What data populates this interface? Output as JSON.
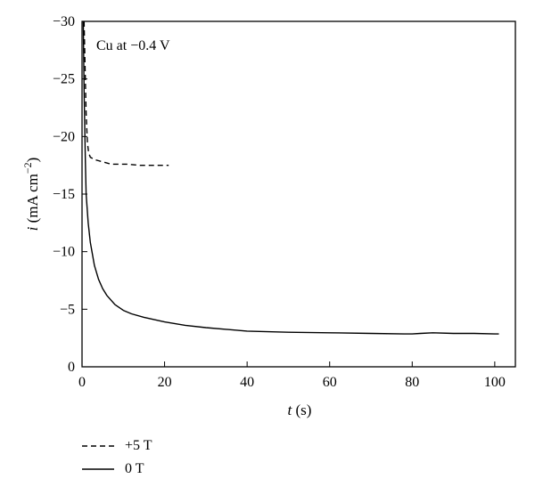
{
  "chart_data": {
    "type": "line",
    "annotation": "Cu at −0.4 V",
    "xlabel_var": "t",
    "xlabel_unit": " (s)",
    "ylabel_var": "i",
    "ylabel_unit": " (mA cm",
    "ylabel_sup": "−2",
    "ylabel_close": ")",
    "xlim": [
      0,
      105
    ],
    "ylim": [
      0,
      -30
    ],
    "y_inverted": true,
    "xticks": [
      0,
      20,
      40,
      60,
      80,
      100
    ],
    "yticks": [
      0,
      -5,
      -10,
      -15,
      -20,
      -25,
      -30
    ],
    "xtick_labels": [
      "0",
      "20",
      "40",
      "60",
      "80",
      "100"
    ],
    "ytick_labels": [
      "0",
      "−5",
      "−10",
      "−15",
      "−20",
      "−25",
      "−30"
    ],
    "grid": false,
    "legend_position": "bottom-left, below plot",
    "series": [
      {
        "name": "+5 T",
        "style": "dashed",
        "x": [
          0.5,
          0.8,
          1.0,
          1.3,
          1.6,
          2.0,
          3.0,
          4.0,
          5.0,
          6.0,
          7.0,
          9.0,
          11.0,
          14.0,
          17.0,
          21.0
        ],
        "y": [
          -30.0,
          -25.0,
          -22.0,
          -19.5,
          -18.6,
          -18.2,
          -18.0,
          -17.9,
          -17.8,
          -17.7,
          -17.6,
          -17.6,
          -17.6,
          -17.5,
          -17.5,
          -17.5
        ]
      },
      {
        "name": "0 T",
        "style": "solid",
        "x": [
          0.3,
          0.5,
          0.8,
          1.0,
          1.5,
          2.0,
          3.0,
          4.0,
          5.0,
          6.0,
          8.0,
          10.0,
          12.0,
          15.0,
          20.0,
          25.0,
          30.0,
          40.0,
          50.0,
          60.0,
          70.0,
          78.0,
          80.0,
          82.0,
          85.0,
          90.0,
          95.0,
          100.0,
          101.0
        ],
        "y": [
          -30.0,
          -24.0,
          -18.0,
          -15.0,
          -12.5,
          -10.8,
          -8.8,
          -7.6,
          -6.8,
          -6.2,
          -5.4,
          -4.9,
          -4.6,
          -4.3,
          -3.9,
          -3.6,
          -3.4,
          -3.1,
          -3.0,
          -2.95,
          -2.9,
          -2.85,
          -2.85,
          -2.9,
          -2.95,
          -2.9,
          -2.9,
          -2.85,
          -2.85
        ]
      }
    ]
  }
}
